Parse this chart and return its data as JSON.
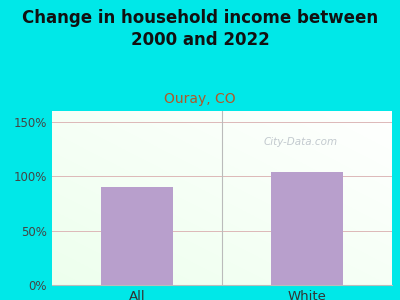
{
  "categories": [
    "All",
    "White"
  ],
  "values": [
    90,
    104
  ],
  "bar_color": "#b89fcc",
  "title": "Change in household income between\n2000 and 2022",
  "subtitle": "Ouray, CO",
  "subtitle_color": "#b05828",
  "title_fontsize": 12,
  "subtitle_fontsize": 10,
  "ylim": [
    0,
    160
  ],
  "yticks": [
    0,
    50,
    100,
    150
  ],
  "yticklabels": [
    "0%",
    "50%",
    "100%",
    "150%"
  ],
  "outer_bg": "#00e8e8",
  "grid_color": "#ddb8b8",
  "watermark": "City-Data.com",
  "bar_width": 0.42
}
